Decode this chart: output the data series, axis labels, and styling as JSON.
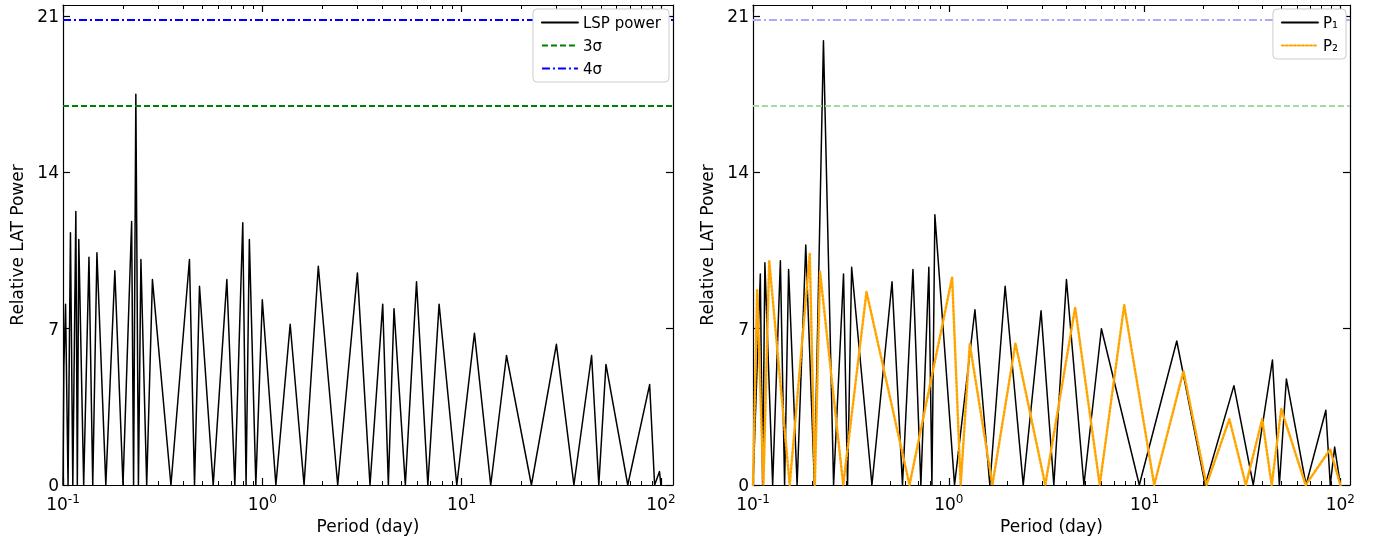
{
  "chart_data": [
    {
      "type": "line",
      "xlabel": "Period (day)",
      "ylabel": "Relative LAT Power",
      "log": "x",
      "legend": "top right",
      "grid": false,
      "xlim": [
        0.1,
        115
      ],
      "xticks": [
        {
          "value": 0.1,
          "label": "10$^{-1}$"
        },
        {
          "value": 1,
          "label": "10$^{0}$"
        },
        {
          "value": 10,
          "label": "10$^{1}$"
        },
        {
          "value": 100,
          "label": "10$^{2}$"
        }
      ],
      "ylim": [
        0,
        21.5
      ],
      "yticks": [
        0,
        7,
        14,
        21
      ],
      "series": [
        {
          "name": "LSP power",
          "color": "#000000",
          "line_style": "solid",
          "x": [
            0.1,
            0.101,
            0.103,
            0.106,
            0.109,
            0.112,
            0.116,
            0.118,
            0.12,
            0.127,
            0.135,
            0.141,
            0.148,
            0.164,
            0.182,
            0.2,
            0.221,
            0.226,
            0.232,
            0.239,
            0.246,
            0.263,
            0.281,
            0.348,
            0.431,
            0.457,
            0.484,
            0.567,
            0.664,
            0.728,
            0.798,
            0.829,
            0.861,
            0.928,
            1.0,
            1.17,
            1.38,
            1.62,
            1.91,
            2.39,
            3.0,
            3.47,
            4.02,
            4.29,
            4.58,
            5.22,
            5.94,
            6.77,
            7.71,
            9.46,
            11.6,
            14.0,
            16.8,
            22.4,
            29.9,
            36.6,
            44.9,
            48.8,
            53.0,
            68.2,
            87.8,
            93.0,
            98.4,
            100
          ],
          "values": [
            0,
            5.3,
            8.1,
            0,
            11.3,
            0,
            12.25,
            0,
            11.0,
            0,
            10.2,
            0,
            10.4,
            0,
            9.6,
            0,
            11.8,
            0,
            17.5,
            0,
            10.1,
            0,
            9.2,
            0,
            10.1,
            0,
            8.9,
            0,
            9.2,
            0,
            11.75,
            0,
            11.0,
            0,
            8.3,
            0,
            7.2,
            0,
            9.8,
            0,
            9.5,
            0,
            8.1,
            0,
            7.9,
            0,
            9.1,
            0,
            8.1,
            0,
            6.8,
            0,
            5.8,
            0,
            6.3,
            0,
            5.8,
            0,
            5.4,
            0,
            4.5,
            0,
            0.6,
            0
          ]
        }
      ],
      "ref_lines": [
        {
          "axis": "y",
          "value": 17.0,
          "label": "3σ",
          "color": "#008000",
          "line_style": "dashed"
        },
        {
          "axis": "y",
          "value": 20.85,
          "label": "4σ",
          "color": "#0000ff",
          "line_style": "dashdot"
        }
      ]
    },
    {
      "type": "line",
      "xlabel": "Period (day)",
      "ylabel": "Relative LAT Power",
      "log": "x",
      "legend": "top right",
      "grid": false,
      "xlim": [
        0.1,
        112
      ],
      "xticks": [
        {
          "value": 0.1,
          "label": "10$^{-1}$"
        },
        {
          "value": 1,
          "label": "10$^{0}$"
        },
        {
          "value": 10,
          "label": "10$^{1}$"
        },
        {
          "value": 100,
          "label": "10$^{2}$"
        }
      ],
      "ylim": [
        0,
        21.5
      ],
      "yticks": [
        0,
        7,
        14,
        21
      ],
      "series": [
        {
          "name": "P₁",
          "color": "#000000",
          "line_style": "solid",
          "x": [
            0.1,
            0.109,
            0.112,
            0.115,
            0.126,
            0.138,
            0.145,
            0.152,
            0.168,
            0.186,
            0.206,
            0.229,
            0.258,
            0.29,
            0.304,
            0.319,
            0.405,
            0.513,
            0.58,
            0.656,
            0.72,
            0.791,
            0.82,
            0.849,
            1.07,
            1.36,
            1.62,
            1.94,
            2.4,
            2.96,
            3.44,
            3.99,
            4.9,
            6.02,
            9.4,
            14.6,
            20.4,
            28.6,
            35.9,
            45.0,
            48.8,
            53.0,
            66.8,
            84.3,
            88.8,
            93.5,
            100
          ],
          "values": [
            0,
            9.45,
            0,
            9.95,
            0,
            10.05,
            0,
            9.65,
            0,
            10.75,
            0,
            19.9,
            0,
            9.45,
            0,
            9.75,
            0,
            9.1,
            0,
            9.65,
            0,
            9.75,
            0,
            12.1,
            0,
            7.85,
            0,
            8.9,
            0,
            7.8,
            0,
            9.2,
            0,
            7.0,
            0,
            6.45,
            0,
            4.45,
            0,
            5.6,
            0,
            4.75,
            0,
            3.35,
            0,
            1.7,
            0
          ]
        },
        {
          "name": "P₂",
          "color": "#ffa500",
          "line_style": "dotted",
          "x": [
            0.1,
            0.105,
            0.113,
            0.121,
            0.154,
            0.195,
            0.207,
            0.22,
            0.289,
            0.38,
            0.63,
            1.04,
            1.15,
            1.28,
            1.67,
            2.19,
            3.11,
            4.42,
            5.9,
            7.87,
            11.2,
            15.8,
            20.7,
            27.1,
            32.9,
            39.9,
            44.6,
            49.9,
            66.5,
            88.7,
            100
          ],
          "values": [
            0,
            8.75,
            0,
            10.05,
            0,
            10.35,
            0,
            9.55,
            0,
            8.65,
            0,
            9.3,
            0,
            6.3,
            0,
            6.35,
            0,
            7.95,
            0,
            8.05,
            0,
            5.1,
            0,
            2.95,
            0,
            2.95,
            0,
            3.4,
            0,
            1.6,
            0
          ]
        }
      ],
      "ref_lines": [
        {
          "axis": "y",
          "value": 17.0,
          "color": "#a6d8a6",
          "line_style": "dashed"
        },
        {
          "axis": "y",
          "value": 20.85,
          "color": "#aaaaff",
          "line_style": "dashdot"
        }
      ]
    }
  ]
}
